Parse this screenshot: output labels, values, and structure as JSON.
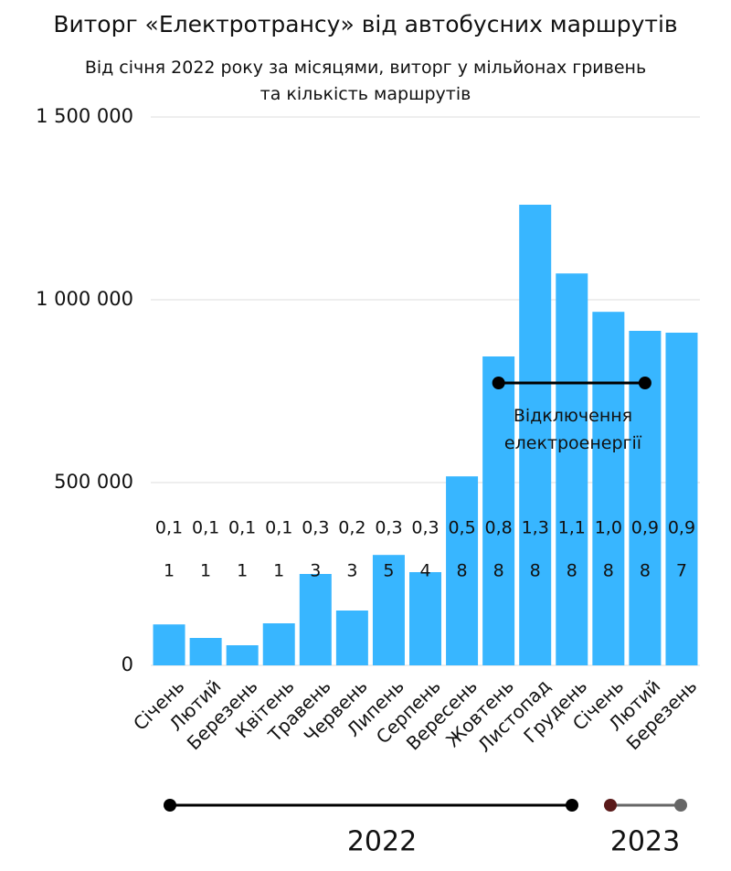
{
  "chart_data": {
    "type": "bar",
    "title": "Виторг «Електротрансу» від автобусних маршрутів",
    "subtitle": "Від січня 2022 року за місяцями, виторг у мільйонах гривень та кількість маршрутів",
    "categories": [
      "Січень",
      "Лютий",
      "Березень",
      "Квітень",
      "Травень",
      "Червень",
      "Липень",
      "Серпень",
      "Вересень",
      "Жовтень",
      "Листопад",
      "Грудень",
      "Січень",
      "Лютий",
      "Березень"
    ],
    "values": [
      112000,
      75000,
      55000,
      115000,
      250000,
      150000,
      302000,
      255000,
      517000,
      845000,
      1260000,
      1072000,
      967000,
      915000,
      910000
    ],
    "value_labels": [
      "0,1",
      "0,1",
      "0,1",
      "0,1",
      "0,3",
      "0,2",
      "0,3",
      "0,3",
      "0,5",
      "0,8",
      "1,3",
      "1,1",
      "1,0",
      "0,9",
      "0,9"
    ],
    "routes": [
      1,
      1,
      1,
      1,
      3,
      3,
      5,
      4,
      8,
      8,
      8,
      8,
      8,
      8,
      7
    ],
    "color": "#38b6ff",
    "ylim": [
      0,
      1500000
    ],
    "yticks": [
      0,
      {
        "value": 500000,
        "label": "500 000"
      },
      {
        "value": 1000000,
        "label": "1 000 000"
      },
      {
        "value": 1500000,
        "label": "1 500 000"
      }
    ],
    "grid": true,
    "annotation": "Відключення електроенергії",
    "periods": [
      "2022",
      "2023"
    ]
  }
}
